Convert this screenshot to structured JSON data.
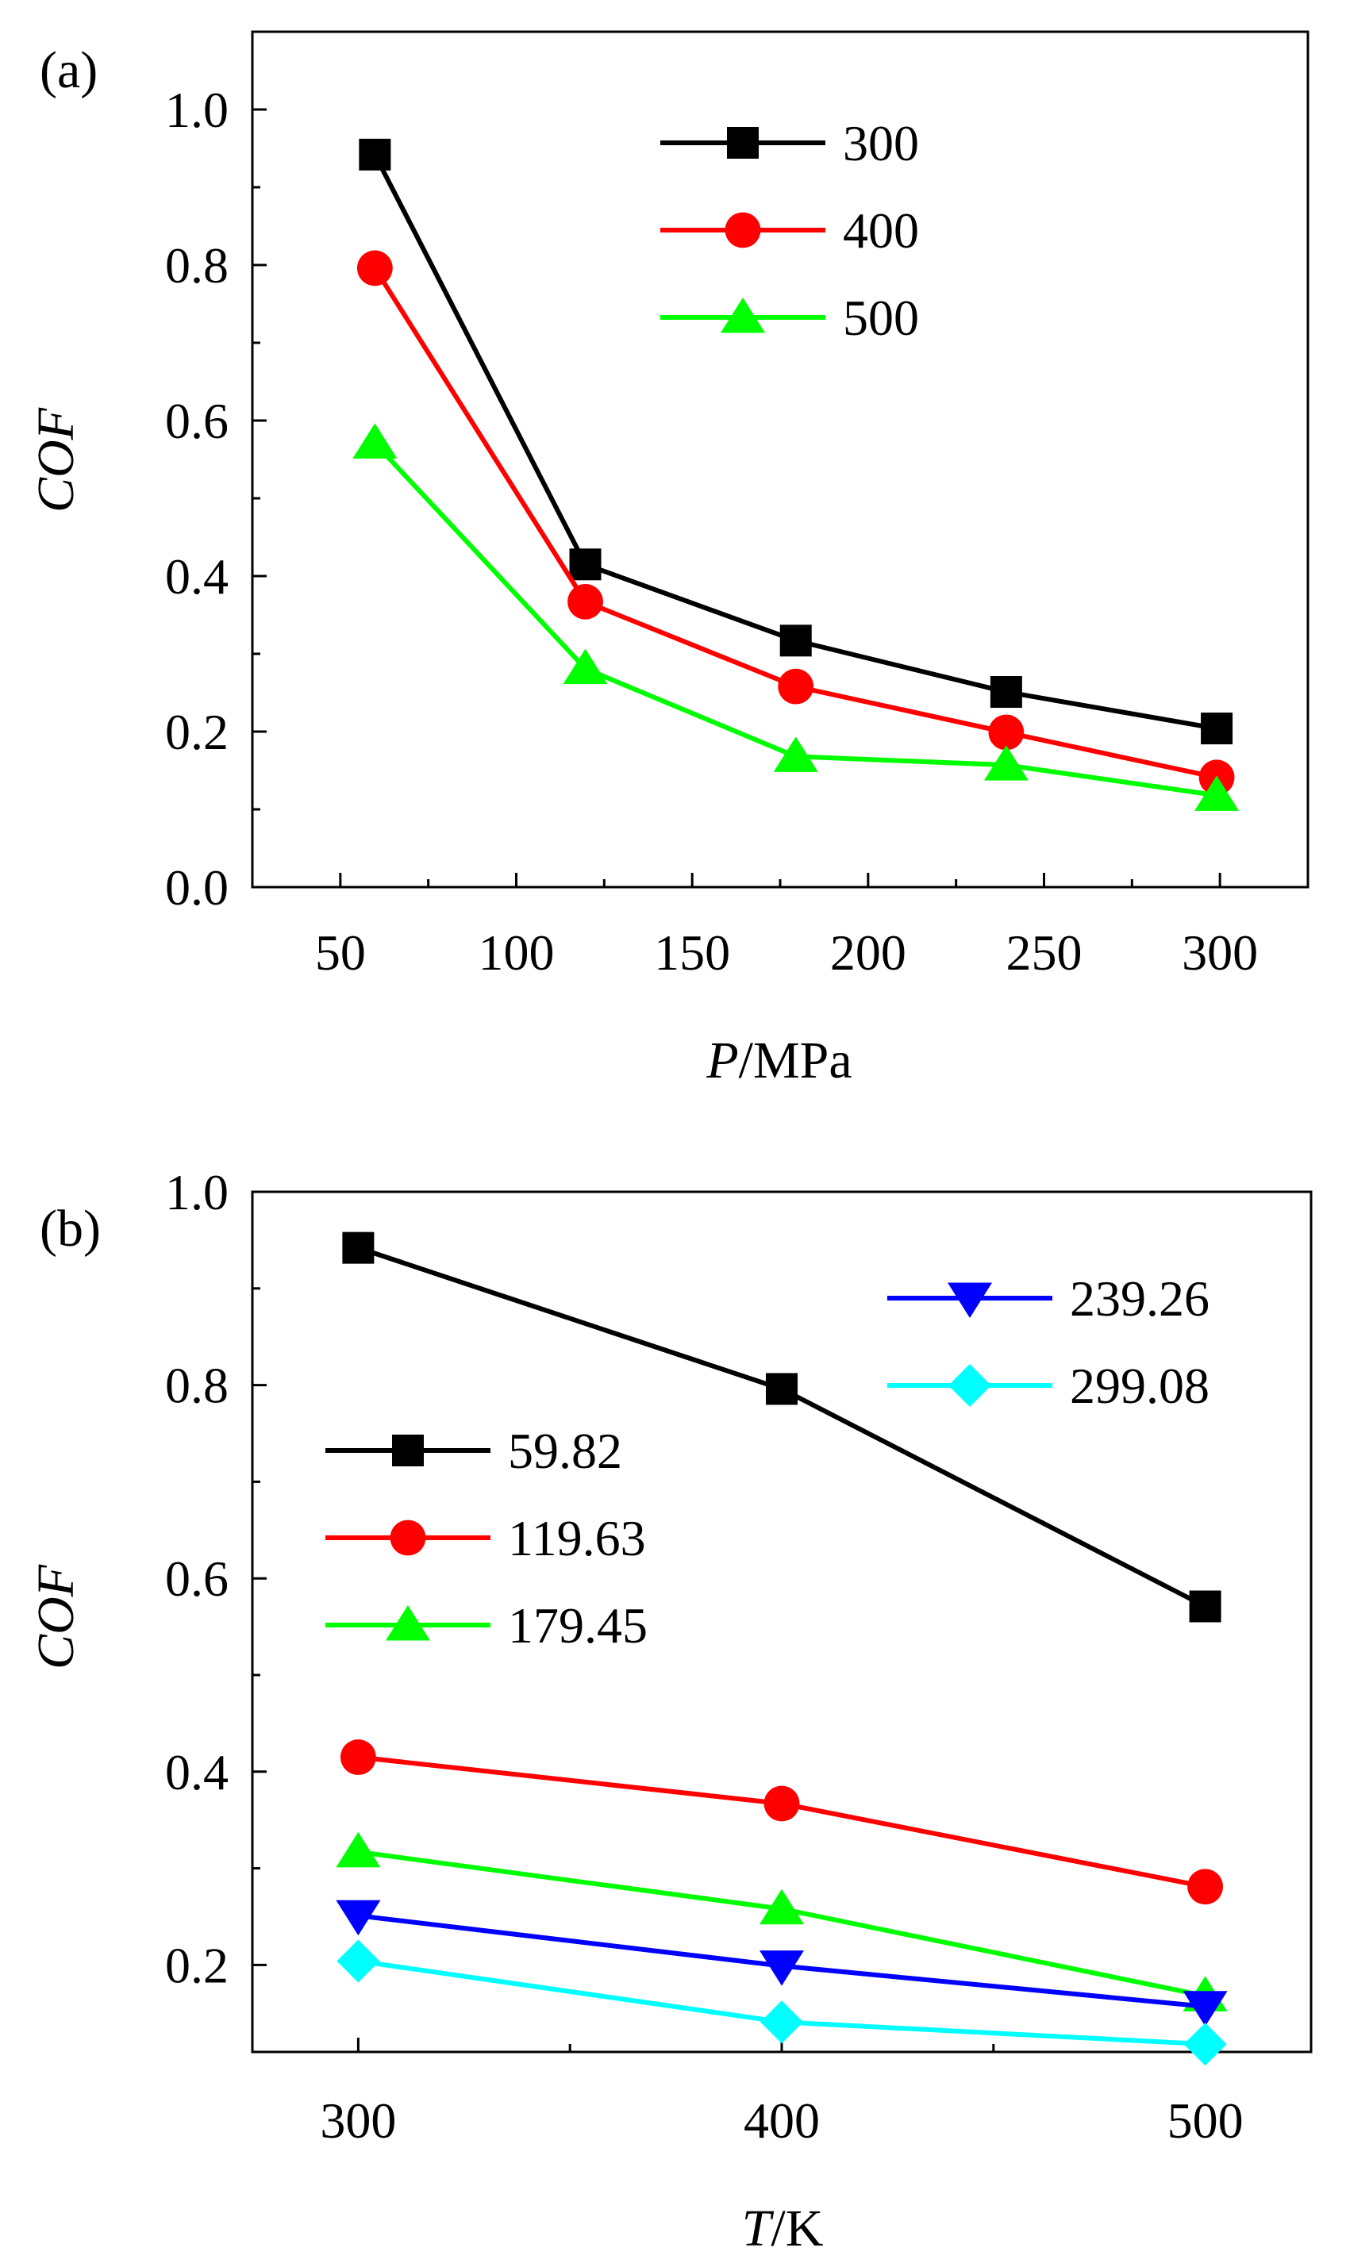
{
  "chart_data": [
    {
      "type": "line",
      "panel_label": "(a)",
      "xlabel_var": "P",
      "xlabel_unit": "/MPa",
      "ylabel": "COF",
      "xlim": [
        25,
        325
      ],
      "ylim": [
        0,
        1.1
      ],
      "xticks": [
        50,
        100,
        150,
        200,
        250,
        300
      ],
      "yticks": [
        0.0,
        0.2,
        0.4,
        0.6,
        0.8,
        1.0
      ],
      "ytick_labels": [
        "0.0",
        "0.2",
        "0.4",
        "0.6",
        "0.8",
        "1.0"
      ],
      "legend_position": "top-right",
      "x": [
        59.82,
        119.63,
        179.45,
        239.26,
        299.08
      ],
      "series": [
        {
          "name": "300",
          "color": "#000000",
          "marker": "square",
          "values": [
            0.942,
            0.415,
            0.317,
            0.251,
            0.204
          ]
        },
        {
          "name": "400",
          "color": "#ff0000",
          "marker": "circle",
          "values": [
            0.796,
            0.367,
            0.258,
            0.199,
            0.141
          ]
        },
        {
          "name": "500",
          "color": "#00ff00",
          "marker": "triangle",
          "values": [
            0.571,
            0.281,
            0.168,
            0.157,
            0.118
          ]
        }
      ]
    },
    {
      "type": "line",
      "panel_label": "(b)",
      "xlabel_var": "T",
      "xlabel_unit": "/K",
      "ylabel": "COF",
      "xlim": [
        275,
        525
      ],
      "ylim": [
        0.11,
        1.0
      ],
      "xticks": [
        300,
        400,
        500
      ],
      "yticks": [
        0.2,
        0.4,
        0.6,
        0.8,
        1.0
      ],
      "ytick_labels": [
        "0.2",
        "0.4",
        "0.6",
        "0.8",
        "1.0"
      ],
      "legend_groups": [
        "middle-left",
        "top-right"
      ],
      "x": [
        300,
        400,
        500
      ],
      "series": [
        {
          "name": "59.82",
          "color": "#000000",
          "marker": "square",
          "values": [
            0.942,
            0.796,
            0.571
          ]
        },
        {
          "name": "119.63",
          "color": "#ff0000",
          "marker": "circle",
          "values": [
            0.415,
            0.367,
            0.281
          ]
        },
        {
          "name": "179.45",
          "color": "#00ff00",
          "marker": "triangle",
          "values": [
            0.317,
            0.258,
            0.168
          ]
        },
        {
          "name": "239.26",
          "color": "#0000ff",
          "marker": "triangle-down",
          "values": [
            0.251,
            0.199,
            0.157
          ]
        },
        {
          "name": "299.08",
          "color": "#00ffff",
          "marker": "diamond",
          "values": [
            0.204,
            0.141,
            0.118
          ]
        }
      ]
    }
  ]
}
